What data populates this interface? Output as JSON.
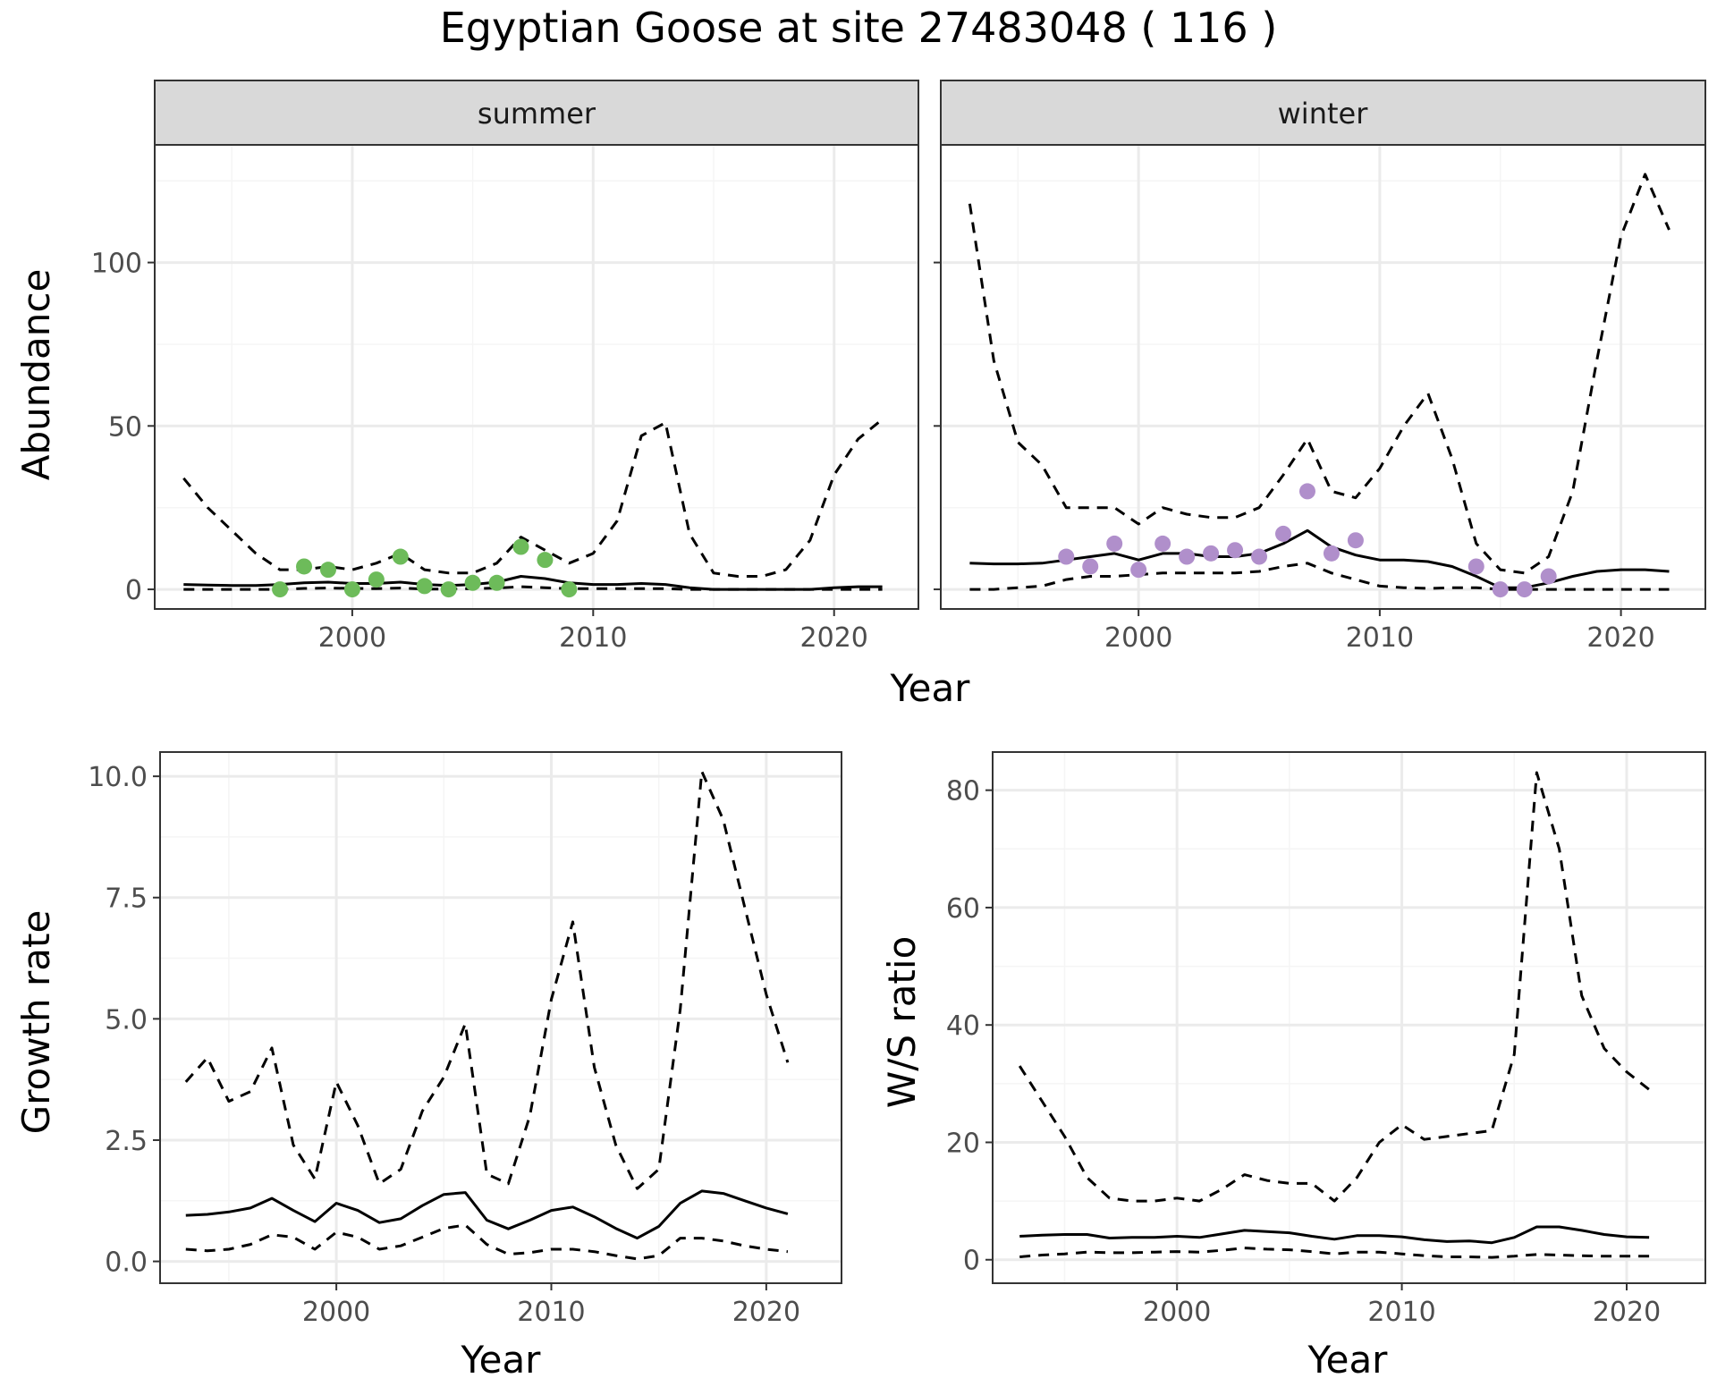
{
  "title": "Egyptian Goose at site 27483048 ( 116 )",
  "colors": {
    "summer_points": "#6dbb5a",
    "winter_points": "#b08fcb",
    "line": "#000000",
    "grid_major": "#ebebeb",
    "grid_minor": "#f5f5f5",
    "strip_bg": "#d9d9d9",
    "panel_border": "#333333"
  },
  "chart_data": [
    {
      "type": "line",
      "panel": "summer",
      "strip_label": "summer",
      "xlabel": "Year",
      "ylabel": "Abundance",
      "xlim": [
        1991.8,
        2023.5
      ],
      "ylim": [
        -6,
        136
      ],
      "xticks": [
        2000,
        2010,
        2020
      ],
      "yticks": [
        0,
        50,
        100
      ],
      "grid": true,
      "series": [
        {
          "role": "estimate",
          "style": "solid",
          "x": [
            1993,
            1994,
            1995,
            1996,
            1997,
            1998,
            1999,
            2000,
            2001,
            2002,
            2003,
            2004,
            2005,
            2006,
            2007,
            2008,
            2009,
            2010,
            2011,
            2012,
            2013,
            2014,
            2015,
            2016,
            2017,
            2018,
            2019,
            2020,
            2021,
            2022
          ],
          "y": [
            1.5,
            1.3,
            1.2,
            1.2,
            1.5,
            2.0,
            2.2,
            1.8,
            1.8,
            2.2,
            1.5,
            1.2,
            1.5,
            2.2,
            4.0,
            3.3,
            2.0,
            1.5,
            1.5,
            1.8,
            1.5,
            0.5,
            0.0,
            0.0,
            0.0,
            0.0,
            0.0,
            0.5,
            0.8,
            0.8
          ]
        },
        {
          "role": "upper",
          "style": "dashed",
          "x": [
            1993,
            1994,
            1995,
            1996,
            1997,
            1998,
            1999,
            2000,
            2001,
            2002,
            2003,
            2004,
            2005,
            2006,
            2007,
            2008,
            2009,
            2010,
            2011,
            2012,
            2013,
            2014,
            2015,
            2016,
            2017,
            2018,
            2019,
            2020,
            2021,
            2022
          ],
          "y": [
            34,
            25,
            18,
            11,
            6,
            6,
            7,
            6,
            8,
            11,
            6,
            5,
            5,
            8,
            16,
            12,
            8,
            11,
            21,
            47,
            51,
            17,
            5,
            4,
            4,
            6,
            15,
            35,
            46,
            52
          ]
        },
        {
          "role": "lower",
          "style": "dashed",
          "x": [
            1993,
            1994,
            1995,
            1996,
            1997,
            1998,
            1999,
            2000,
            2001,
            2002,
            2003,
            2004,
            2005,
            2006,
            2007,
            2008,
            2009,
            2010,
            2011,
            2012,
            2013,
            2014,
            2015,
            2016,
            2017,
            2018,
            2019,
            2020,
            2021,
            2022
          ],
          "y": [
            0,
            0,
            0,
            0,
            0,
            0.3,
            0.4,
            0.3,
            0.2,
            0.4,
            0.1,
            0.1,
            0.2,
            0.4,
            0.8,
            0.5,
            0.2,
            0.2,
            0.2,
            0.2,
            0.2,
            0,
            0,
            0,
            0,
            0,
            0,
            0,
            0,
            0
          ]
        }
      ],
      "points": {
        "x": [
          1997,
          1998,
          1999,
          2000,
          2001,
          2002,
          2003,
          2004,
          2005,
          2006,
          2007,
          2008,
          2009
        ],
        "y": [
          0,
          7,
          6,
          0,
          3,
          10,
          1,
          0,
          2,
          2,
          13,
          9,
          0
        ]
      }
    },
    {
      "type": "line",
      "panel": "winter",
      "strip_label": "winter",
      "xlabel": "Year",
      "ylabel": "",
      "xlim": [
        1991.8,
        2023.5
      ],
      "ylim": [
        -6,
        136
      ],
      "xticks": [
        2000,
        2010,
        2020
      ],
      "yticks": [],
      "grid": true,
      "series": [
        {
          "role": "estimate",
          "style": "solid",
          "x": [
            1993,
            1994,
            1995,
            1996,
            1997,
            1998,
            1999,
            2000,
            2001,
            2002,
            2003,
            2004,
            2005,
            2006,
            2007,
            2008,
            2009,
            2010,
            2011,
            2012,
            2013,
            2014,
            2015,
            2016,
            2017,
            2018,
            2019,
            2020,
            2021,
            2022
          ],
          "y": [
            8,
            7.8,
            7.8,
            8,
            9,
            10,
            11,
            9,
            11,
            11,
            10,
            10,
            11,
            14,
            18,
            13,
            10.5,
            9,
            9,
            8.5,
            7,
            4,
            0.5,
            0.5,
            2,
            4,
            5.5,
            6,
            6,
            5.5
          ]
        },
        {
          "role": "upper",
          "style": "dashed",
          "x": [
            1993,
            1994,
            1995,
            1996,
            1997,
            1998,
            1999,
            2000,
            2001,
            2002,
            2003,
            2004,
            2005,
            2006,
            2007,
            2008,
            2009,
            2010,
            2011,
            2012,
            2013,
            2014,
            2015,
            2016,
            2017,
            2018,
            2019,
            2020,
            2021,
            2022
          ],
          "y": [
            118,
            70,
            45,
            38,
            25,
            25,
            25,
            20,
            25,
            23,
            22,
            22,
            25,
            35,
            46,
            30,
            28,
            37,
            50,
            60,
            40,
            14,
            6,
            5,
            10,
            30,
            70,
            108,
            127,
            110
          ]
        },
        {
          "role": "lower",
          "style": "dashed",
          "x": [
            1993,
            1994,
            1995,
            1996,
            1997,
            1998,
            1999,
            2000,
            2001,
            2002,
            2003,
            2004,
            2005,
            2006,
            2007,
            2008,
            2009,
            2010,
            2011,
            2012,
            2013,
            2014,
            2015,
            2016,
            2017,
            2018,
            2019,
            2020,
            2021,
            2022
          ],
          "y": [
            0,
            0,
            0.5,
            1,
            3,
            4,
            4,
            4.5,
            5,
            5,
            5,
            5,
            5.5,
            7,
            8,
            5,
            3,
            1,
            0.5,
            0.3,
            0.5,
            0.5,
            0,
            0,
            0,
            0,
            0,
            0,
            0,
            0
          ]
        }
      ],
      "points": {
        "x": [
          1997,
          1998,
          1999,
          2000,
          2001,
          2002,
          2003,
          2004,
          2005,
          2006,
          2007,
          2008,
          2009,
          2014,
          2015,
          2016,
          2017
        ],
        "y": [
          10,
          7,
          14,
          6,
          14,
          10,
          11,
          12,
          10,
          17,
          30,
          11,
          15,
          7,
          0,
          0,
          4
        ]
      }
    },
    {
      "type": "line",
      "panel": "growth",
      "strip_label": "",
      "xlabel": "Year",
      "ylabel": "Growth rate",
      "xlim": [
        1991.8,
        2023.5
      ],
      "ylim": [
        -0.45,
        10.5
      ],
      "xticks": [
        2000,
        2010,
        2020
      ],
      "yticks": [
        0,
        2.5,
        5,
        7.5,
        10
      ],
      "ytick_labels": [
        "0.0",
        "2.5",
        "5.0",
        "7.5",
        "10.0"
      ],
      "grid": true,
      "series": [
        {
          "role": "estimate",
          "style": "solid",
          "x": [
            1993,
            1994,
            1995,
            1996,
            1997,
            1998,
            1999,
            2000,
            2001,
            2002,
            2003,
            2004,
            2005,
            2006,
            2007,
            2008,
            2009,
            2010,
            2011,
            2012,
            2013,
            2014,
            2015,
            2016,
            2017,
            2018,
            2019,
            2020,
            2021
          ],
          "y": [
            0.95,
            0.97,
            1.02,
            1.1,
            1.3,
            1.05,
            0.82,
            1.2,
            1.05,
            0.8,
            0.88,
            1.15,
            1.38,
            1.42,
            0.85,
            0.67,
            0.85,
            1.05,
            1.12,
            0.92,
            0.68,
            0.48,
            0.72,
            1.2,
            1.45,
            1.4,
            1.25,
            1.1,
            0.98
          ]
        },
        {
          "role": "upper",
          "style": "dashed",
          "x": [
            1993,
            1994,
            1995,
            1996,
            1997,
            1998,
            1999,
            2000,
            2001,
            2002,
            2003,
            2004,
            2005,
            2006,
            2007,
            2008,
            2009,
            2010,
            2011,
            2012,
            2013,
            2014,
            2015,
            2016,
            2017,
            2018,
            2019,
            2020,
            2021
          ],
          "y": [
            3.7,
            4.2,
            3.3,
            3.5,
            4.4,
            2.4,
            1.7,
            3.7,
            2.8,
            1.6,
            1.9,
            3.1,
            3.8,
            4.9,
            1.8,
            1.6,
            3.0,
            5.4,
            7.0,
            4.0,
            2.4,
            1.5,
            1.9,
            5.2,
            10.1,
            9.1,
            7.3,
            5.5,
            4.1
          ]
        },
        {
          "role": "lower",
          "style": "dashed",
          "x": [
            1993,
            1994,
            1995,
            1996,
            1997,
            1998,
            1999,
            2000,
            2001,
            2002,
            2003,
            2004,
            2005,
            2006,
            2007,
            2008,
            2009,
            2010,
            2011,
            2012,
            2013,
            2014,
            2015,
            2016,
            2017,
            2018,
            2019,
            2020,
            2021
          ],
          "y": [
            0.25,
            0.22,
            0.25,
            0.35,
            0.55,
            0.5,
            0.25,
            0.6,
            0.5,
            0.25,
            0.32,
            0.5,
            0.68,
            0.75,
            0.35,
            0.15,
            0.18,
            0.25,
            0.25,
            0.2,
            0.12,
            0.05,
            0.12,
            0.48,
            0.48,
            0.42,
            0.32,
            0.25,
            0.2
          ]
        }
      ]
    },
    {
      "type": "line",
      "panel": "ratio",
      "strip_label": "",
      "xlabel": "Year",
      "ylabel": "W/S ratio",
      "xlim": [
        1991.8,
        2023.5
      ],
      "ylim": [
        -4,
        86.5
      ],
      "xticks": [
        2000,
        2010,
        2020
      ],
      "yticks": [
        0,
        20,
        40,
        60,
        80
      ],
      "ytick_labels": [
        "0",
        "20",
        "40",
        "60",
        "80"
      ],
      "grid": true,
      "series": [
        {
          "role": "estimate",
          "style": "solid",
          "x": [
            1993,
            1994,
            1995,
            1996,
            1997,
            1998,
            1999,
            2000,
            2001,
            2002,
            2003,
            2004,
            2005,
            2006,
            2007,
            2008,
            2009,
            2010,
            2011,
            2012,
            2013,
            2014,
            2015,
            2016,
            2017,
            2018,
            2019,
            2020,
            2021
          ],
          "y": [
            4,
            4.2,
            4.3,
            4.3,
            3.7,
            3.8,
            3.8,
            4.0,
            3.8,
            4.4,
            5.0,
            4.8,
            4.6,
            4.0,
            3.5,
            4.1,
            4.1,
            3.9,
            3.4,
            3.1,
            3.2,
            2.9,
            3.8,
            5.6,
            5.6,
            5.0,
            4.3,
            3.9,
            3.8
          ]
        },
        {
          "role": "upper",
          "style": "dashed",
          "x": [
            1993,
            1994,
            1995,
            1996,
            1997,
            1998,
            1999,
            2000,
            2001,
            2002,
            2003,
            2004,
            2005,
            2006,
            2007,
            2008,
            2009,
            2010,
            2011,
            2012,
            2013,
            2014,
            2015,
            2016,
            2017,
            2018,
            2019,
            2020,
            2021
          ],
          "y": [
            33,
            27,
            21,
            14,
            10.5,
            10,
            10,
            10.5,
            10,
            12,
            14.5,
            13.5,
            13,
            13,
            10,
            14,
            20,
            23,
            20.5,
            21,
            21.5,
            22,
            35,
            83,
            70,
            45,
            36,
            32,
            29
          ]
        },
        {
          "role": "lower",
          "style": "dashed",
          "x": [
            1993,
            1994,
            1995,
            1996,
            1997,
            1998,
            1999,
            2000,
            2001,
            2002,
            2003,
            2004,
            2005,
            2006,
            2007,
            2008,
            2009,
            2010,
            2011,
            2012,
            2013,
            2014,
            2015,
            2016,
            2017,
            2018,
            2019,
            2020,
            2021
          ],
          "y": [
            0.5,
            0.8,
            1.0,
            1.3,
            1.2,
            1.2,
            1.3,
            1.4,
            1.3,
            1.6,
            2.0,
            1.8,
            1.7,
            1.4,
            1.0,
            1.3,
            1.3,
            1.0,
            0.7,
            0.5,
            0.5,
            0.4,
            0.6,
            0.9,
            0.8,
            0.7,
            0.6,
            0.6,
            0.6
          ]
        }
      ]
    }
  ]
}
